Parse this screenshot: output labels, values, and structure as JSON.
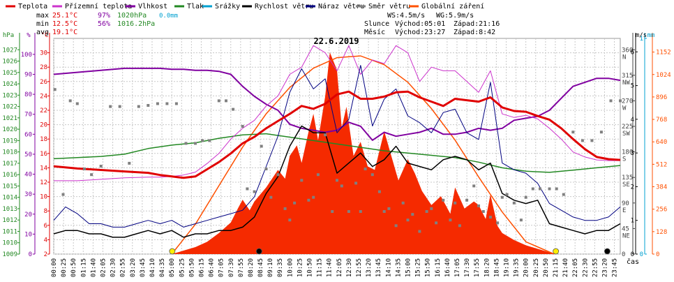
{
  "legend": [
    {
      "label": "Teplota",
      "color": "#e00000"
    },
    {
      "label": "Přízemní teplota",
      "color": "#cc33cc"
    },
    {
      "label": "Vlhkost",
      "color": "#8000a0"
    },
    {
      "label": "Tlak",
      "color": "#228822"
    },
    {
      "label": "Srážky",
      "color": "#00a0d0"
    },
    {
      "label": "Rychlost větru",
      "color": "#000000"
    },
    {
      "label": "Náraz větru",
      "color": "#000080"
    },
    {
      "label": "Směr větru",
      "color": "#808080"
    },
    {
      "label": "Globální záření",
      "color": "#ff5000"
    }
  ],
  "stats": {
    "max": {
      "label": "max",
      "temp": "25.1°C",
      "hum": "97%",
      "press": "1020hPa",
      "rain": "0.0mm"
    },
    "min": {
      "label": "min",
      "temp": "12.5°C",
      "hum": "56%",
      "press": "1016.2hPa"
    },
    "avg": {
      "label": "avg",
      "temp": "19.1°C"
    },
    "ws": "WS:4.5m/s",
    "wg": "WG:5.9m/s",
    "sun": {
      "label": "Slunce",
      "rise": "Východ:05:01",
      "set": "Západ:21:16"
    },
    "moon": {
      "label": "Měsíc",
      "rise": "Východ:23:27",
      "set": "Západ:8:42"
    }
  },
  "chart_data": {
    "type": "line",
    "title": "22.6.2019",
    "x_tick_labels": [
      "00:00",
      "00:25",
      "00:50",
      "01:15",
      "01:40",
      "02:05",
      "02:30",
      "02:55",
      "03:20",
      "03:45",
      "04:10",
      "04:35",
      "05:00",
      "05:25",
      "05:50",
      "06:15",
      "06:40",
      "07:05",
      "07:30",
      "07:55",
      "08:20",
      "08:45",
      "09:10",
      "09:35",
      "10:00",
      "10:25",
      "10:50",
      "11:15",
      "11:40",
      "12:05",
      "12:30",
      "12:55",
      "13:20",
      "13:45",
      "14:10",
      "14:35",
      "15:00",
      "15:25",
      "15:50",
      "16:15",
      "16:40",
      "17:05",
      "17:30",
      "17:55",
      "18:20",
      "18:45",
      "19:10",
      "19:35",
      "20:00",
      "20:25",
      "20:50",
      "21:15",
      "21:40",
      "22:05",
      "22:30",
      "22:55",
      "23:20",
      "23:45"
    ],
    "x_axis_label": "čas",
    "axes": {
      "pressure": {
        "unit": "hPa",
        "range": [
          1009,
          1028
        ],
        "ticks": [
          "1027",
          "1026",
          "1025",
          "1024",
          "1023",
          "1022",
          "1021",
          "1020",
          "1019",
          "1018",
          "1017",
          "1016",
          "1015",
          "1014",
          "1013",
          "1012",
          "1011",
          "1010",
          "1009"
        ]
      },
      "humidity": {
        "unit": "%",
        "range": [
          0,
          108
        ],
        "ticks": [
          "100",
          "90",
          "80",
          "70",
          "60",
          "50",
          "40",
          "30",
          "20",
          "10",
          "0"
        ]
      },
      "temperature": {
        "unit": "°C",
        "range": [
          2,
          32
        ],
        "ticks": [
          "30",
          "28",
          "26",
          "24",
          "22",
          "20",
          "18",
          "16",
          "14",
          "12",
          "10",
          "8",
          "6",
          "4",
          "2"
        ]
      },
      "wind_direction": {
        "range": [
          0,
          380
        ],
        "ticks": [
          {
            "v": 360,
            "t": "360",
            "d": "N"
          },
          {
            "v": 315,
            "t": "315",
            "d": "NW"
          },
          {
            "v": 270,
            "t": "270",
            "d": "W"
          },
          {
            "v": 225,
            "t": "225",
            "d": "SW"
          },
          {
            "v": 180,
            "t": "180",
            "d": "S"
          },
          {
            "v": 135,
            "t": "135",
            "d": "SE"
          },
          {
            "v": 90,
            "t": "90",
            "d": "E"
          },
          {
            "v": 45,
            "t": "45",
            "d": "NE"
          },
          {
            "v": 0,
            "t": "0",
            "d": ""
          }
        ]
      },
      "wind_speed": {
        "unit": "m/s",
        "range": [
          0,
          6.4
        ],
        "ticks": [
          "6",
          "5",
          "4",
          "3",
          "2",
          "1",
          "0"
        ]
      },
      "rain": {
        "unit": "mm",
        "range": [
          0,
          1
        ],
        "ticks": [
          "1",
          "0"
        ]
      },
      "radiation": {
        "range": [
          0,
          1230
        ],
        "ticks": [
          "1152",
          "1024",
          "896",
          "768",
          "640",
          "512",
          "384",
          "256",
          "128",
          "0"
        ]
      }
    },
    "series": [
      {
        "name": "Teplota",
        "color": "#e00000",
        "width": 3,
        "axis": "temperature",
        "x": [
          0,
          1,
          2,
          3,
          4,
          4.5,
          5,
          5.5,
          6,
          6.5,
          7,
          7.5,
          8,
          8.5,
          9,
          9.5,
          10,
          10.5,
          11,
          11.5,
          12,
          12.5,
          13,
          13.5,
          14,
          14.5,
          15,
          15.5,
          16,
          16.5,
          17,
          17.5,
          18,
          18.5,
          19,
          19.5,
          20,
          20.5,
          21,
          21.5,
          22,
          22.5,
          23,
          23.5,
          24
        ],
        "y": [
          14.2,
          13.9,
          13.7,
          13.5,
          13.3,
          13,
          12.8,
          12.6,
          12.8,
          13.8,
          14.8,
          16,
          17.4,
          18.3,
          19.5,
          20.5,
          21.5,
          22.6,
          22.2,
          22.9,
          24.2,
          24.6,
          23.6,
          23.6,
          23.9,
          24.5,
          24.6,
          23.8,
          23.2,
          22.6,
          23.6,
          23.4,
          23.2,
          23.8,
          22.4,
          21.9,
          21.8,
          21.2,
          20.7,
          19.5,
          18,
          16.6,
          15.5,
          15.2,
          15.1
        ]
      },
      {
        "name": "Přízemní teplota",
        "color": "#cc33cc",
        "width": 1,
        "axis": "temperature",
        "x": [
          0,
          1,
          2,
          3,
          4,
          4.5,
          5,
          5.5,
          6,
          6.5,
          7,
          7.5,
          8,
          8.5,
          9,
          9.5,
          10,
          10.5,
          11,
          11.5,
          12,
          12.5,
          13,
          13.5,
          14,
          14.5,
          15,
          15.5,
          16,
          16.5,
          17,
          17.5,
          18,
          18.5,
          19,
          19.5,
          20,
          20.5,
          21,
          21.5,
          22,
          22.5,
          23,
          23.5,
          24
        ],
        "y": [
          12.2,
          12.2,
          12.4,
          12.6,
          12.7,
          12.7,
          12.8,
          13,
          13.4,
          14.6,
          16,
          18,
          19.5,
          20.6,
          22.6,
          24,
          27,
          28,
          31,
          30,
          27.5,
          31,
          27,
          29,
          28.5,
          31,
          30,
          26,
          28,
          27.5,
          27.5,
          26,
          24.5,
          27.5,
          21.5,
          21,
          21.3,
          20.8,
          19.5,
          18,
          16.2,
          15.5,
          15.1,
          15,
          15
        ]
      },
      {
        "name": "Vlhkost",
        "color": "#8000a0",
        "width": 2,
        "axis": "humidity",
        "x": [
          0,
          1,
          2,
          3,
          4,
          4.5,
          5,
          5.5,
          6,
          6.5,
          7,
          7.5,
          8,
          8.5,
          9,
          9.5,
          10,
          10.5,
          11,
          11.5,
          12,
          12.5,
          13,
          13.5,
          14,
          14.5,
          15,
          15.5,
          16,
          16.5,
          17,
          17.5,
          18,
          18.5,
          19,
          19.5,
          20,
          20.5,
          21,
          21.5,
          22,
          22.5,
          23,
          23.5,
          24
        ],
        "y": [
          90,
          91,
          92,
          93,
          93,
          93,
          92.5,
          92.5,
          92,
          92,
          91.5,
          90,
          84,
          79,
          75,
          72,
          65,
          63,
          62,
          61,
          62,
          66,
          64,
          57,
          61,
          59,
          60,
          61,
          63,
          60,
          60,
          61,
          63,
          62,
          63,
          67,
          68,
          69,
          72,
          78,
          84,
          86,
          88,
          88,
          87
        ]
      },
      {
        "name": "Tlak",
        "color": "#228822",
        "width": 1.5,
        "axis": "pressure",
        "x": [
          0,
          1,
          2,
          3,
          4,
          5,
          6,
          7,
          8,
          9,
          10,
          11,
          12,
          13,
          14,
          15,
          16,
          17,
          18,
          19,
          20,
          21,
          22,
          23,
          24
        ],
        "y": [
          1017.4,
          1017.5,
          1017.6,
          1017.8,
          1018.3,
          1018.6,
          1018.8,
          1019.2,
          1019.5,
          1019.6,
          1019.3,
          1019,
          1018.7,
          1018.4,
          1018.1,
          1017.9,
          1017.7,
          1017.5,
          1017.1,
          1016.6,
          1016.3,
          1016.2,
          1016.4,
          1016.6,
          1016.8
        ]
      },
      {
        "name": "Rychlost větru",
        "color": "#000000",
        "width": 1.5,
        "axis": "wind_speed",
        "x": [
          0,
          0.5,
          1,
          1.5,
          2,
          2.5,
          3,
          3.5,
          4,
          4.5,
          5,
          5.5,
          6,
          6.5,
          7,
          7.5,
          8,
          8.5,
          9,
          9.5,
          10,
          10.5,
          11,
          11.5,
          12,
          12.5,
          13,
          13.5,
          14,
          14.5,
          15,
          15.5,
          16,
          16.5,
          17,
          17.5,
          18,
          18.5,
          19,
          19.5,
          20,
          20.5,
          21,
          21.5,
          22,
          22.5,
          23,
          23.5,
          24
        ],
        "y": [
          0.6,
          0.7,
          0.7,
          0.6,
          0.6,
          0.5,
          0.5,
          0.6,
          0.7,
          0.6,
          0.7,
          0.5,
          0.6,
          0.6,
          0.7,
          0.7,
          0.8,
          1.1,
          1.8,
          2.3,
          3.2,
          3.8,
          3.6,
          3.6,
          2.4,
          2.7,
          3,
          2.6,
          2.8,
          3.2,
          2.7,
          2.6,
          2.5,
          2.8,
          2.9,
          2.8,
          2.5,
          2.7,
          1.8,
          1.6,
          1.5,
          1.6,
          0.9,
          0.8,
          0.7,
          0.6,
          0.7,
          0.7,
          0.9
        ]
      },
      {
        "name": "Náraz větru",
        "color": "#000080",
        "width": 1,
        "axis": "wind_speed",
        "x": [
          0,
          0.5,
          1,
          1.5,
          2,
          2.5,
          3,
          3.5,
          4,
          4.5,
          5,
          5.5,
          6,
          6.5,
          7,
          7.5,
          8,
          8.5,
          9,
          9.5,
          10,
          10.5,
          11,
          11.5,
          12,
          12.5,
          13,
          13.5,
          14,
          14.5,
          15,
          15.5,
          16,
          16.5,
          17,
          17.5,
          18,
          18.5,
          19,
          19.5,
          20,
          20.5,
          21,
          21.5,
          22,
          22.5,
          23,
          23.5,
          24
        ],
        "y": [
          1,
          1.4,
          1.2,
          0.9,
          0.9,
          0.8,
          0.8,
          0.9,
          1,
          0.9,
          1,
          0.8,
          0.9,
          1,
          1.1,
          1.2,
          1.3,
          1.7,
          2.6,
          3.5,
          4.8,
          5.5,
          4.9,
          5.2,
          3.6,
          4,
          5.6,
          3.8,
          4.6,
          4.9,
          4.1,
          3.9,
          3.6,
          4.2,
          4.3,
          3.6,
          3.4,
          5.1,
          2.7,
          2.5,
          2.4,
          2.1,
          1.5,
          1.3,
          1.1,
          1,
          1,
          1.1,
          1.4
        ]
      },
      {
        "name": "Globální záření",
        "color": "#ff5000",
        "width": 1.5,
        "axis": "radiation",
        "fill": "#f52a00",
        "x": [
          5,
          5.5,
          6,
          6.5,
          7,
          7.5,
          7.8,
          8,
          8.3,
          8.5,
          9,
          9.5,
          9.8,
          10,
          10.3,
          10.5,
          10.8,
          11,
          11.2,
          11.5,
          11.7,
          12,
          12.2,
          12.4,
          12.7,
          13,
          13.3,
          13.6,
          14,
          14.3,
          14.6,
          15,
          15.3,
          15.6,
          16,
          16.4,
          16.8,
          17,
          17.4,
          17.8,
          18,
          18.3,
          18.5,
          18.8,
          19,
          19.5,
          20,
          20.5,
          21,
          21.2
        ],
        "y": [
          0,
          20,
          40,
          70,
          120,
          180,
          260,
          310,
          250,
          300,
          380,
          480,
          430,
          560,
          620,
          520,
          700,
          800,
          650,
          900,
          1150,
          1050,
          720,
          840,
          560,
          640,
          500,
          480,
          700,
          560,
          420,
          540,
          460,
          360,
          280,
          330,
          230,
          380,
          260,
          300,
          280,
          200,
          340,
          160,
          120,
          80,
          50,
          30,
          10,
          0
        ]
      }
    ],
    "reference_lines": [
      {
        "name": "clear-sky-radiation",
        "color": "#ff5000",
        "axis": "radiation",
        "x": [
          5,
          6,
          7,
          8,
          9,
          10,
          11,
          12,
          13,
          14,
          15,
          16,
          17,
          18,
          19,
          20,
          21.2
        ],
        "y": [
          0,
          170,
          390,
          610,
          800,
          950,
          1060,
          1120,
          1130,
          1080,
          980,
          830,
          650,
          440,
          240,
          70,
          0
        ]
      }
    ],
    "wind_direction_points": {
      "name": "Směr větru",
      "color": "#808080",
      "axis": "wind_direction",
      "x": [
        0.05,
        0.4,
        0.7,
        1,
        1.3,
        1.6,
        2,
        2.4,
        2.8,
        3.2,
        3.6,
        4,
        4.4,
        4.8,
        5.2,
        5.6,
        6,
        6.3,
        6.6,
        7,
        7.3,
        7.6,
        8,
        8.2,
        8.5,
        8.8,
        9,
        9.2,
        9.5,
        9.8,
        10,
        10.2,
        10.5,
        10.8,
        11,
        11.2,
        11.5,
        11.8,
        12,
        12.2,
        12.5,
        12.8,
        13,
        13.2,
        13.5,
        13.8,
        14,
        14.2,
        14.5,
        14.8,
        15,
        15.2,
        15.5,
        15.8,
        16,
        16.2,
        16.5,
        16.8,
        17,
        17.2,
        17.5,
        17.8,
        18,
        18.2,
        18.5,
        18.8,
        19,
        19.2,
        19.5,
        19.8,
        20,
        20.3,
        20.6,
        21,
        21.3,
        21.6,
        22,
        22.4,
        22.8,
        23.2,
        23.6,
        24
      ],
      "y": [
        290,
        105,
        270,
        265,
        150,
        140,
        155,
        260,
        260,
        160,
        260,
        262,
        265,
        265,
        265,
        195,
        195,
        200,
        200,
        270,
        270,
        255,
        225,
        115,
        110,
        190,
        150,
        100,
        140,
        80,
        60,
        90,
        130,
        95,
        100,
        140,
        210,
        75,
        130,
        120,
        75,
        125,
        75,
        150,
        140,
        110,
        75,
        80,
        50,
        90,
        60,
        70,
        40,
        75,
        80,
        55,
        95,
        60,
        90,
        50,
        95,
        120,
        85,
        75,
        65,
        55,
        100,
        105,
        90,
        60,
        100,
        115,
        115,
        115,
        115,
        105,
        215,
        200,
        200,
        215,
        270,
        270
      ]
    },
    "markers": [
      {
        "name": "sunrise-marker",
        "x": 5.02,
        "color": "#ffee00"
      },
      {
        "name": "moonset-marker",
        "x": 8.7,
        "color": "#000000"
      },
      {
        "name": "sunset-marker",
        "x": 21.27,
        "color": "#ffee00"
      },
      {
        "name": "moonrise-marker",
        "x": 23.45,
        "color": "#000000"
      }
    ],
    "grid": true
  }
}
